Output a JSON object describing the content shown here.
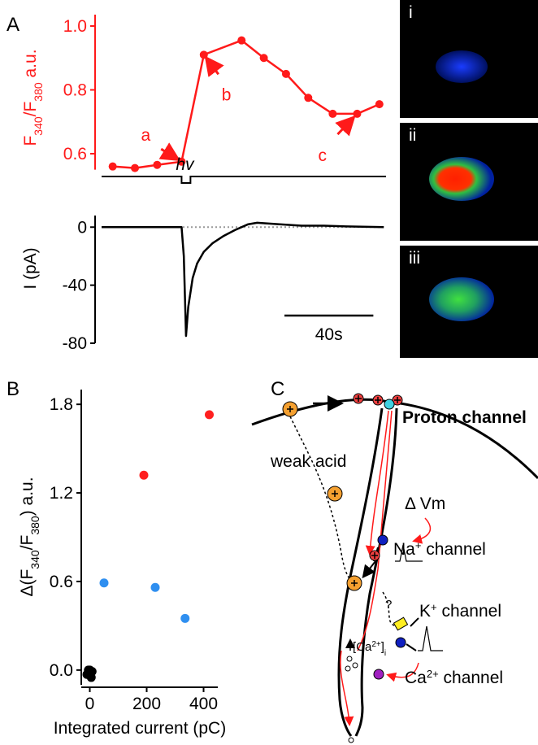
{
  "panel_labels": [
    "A",
    "B",
    "C"
  ],
  "chart_data": [
    {
      "type": "line",
      "ylabel_parts": [
        "F",
        "340",
        "/F",
        "380",
        " a.u."
      ],
      "x": [
        5,
        15,
        25,
        36,
        46,
        63,
        73,
        83,
        93,
        104,
        115,
        125
      ],
      "values": [
        0.56,
        0.555,
        0.565,
        0.575,
        0.91,
        0.955,
        0.9,
        0.85,
        0.775,
        0.725,
        0.725,
        0.755
      ],
      "xlim": [
        0,
        128
      ],
      "ylim": [
        0.55,
        1.0
      ],
      "yticks": [
        0.6,
        0.8,
        {
          "value": 1.0,
          "label": "1.0"
        }
      ],
      "color": "#ff1a1a",
      "annotations": [
        "a",
        "b",
        "c"
      ]
    },
    {
      "type": "line",
      "ylabel": "I (pA)",
      "x": [
        0,
        10,
        20,
        30,
        36,
        37,
        38,
        39,
        41,
        43,
        46,
        50,
        55,
        60,
        66,
        70,
        80,
        90,
        100,
        110,
        127
      ],
      "values": [
        0,
        0,
        0,
        0,
        0,
        -20,
        -75,
        -55,
        -35,
        -25,
        -17,
        -11,
        -6,
        -2,
        2,
        3,
        2,
        1,
        1,
        0.5,
        0
      ],
      "xlim": [
        0,
        128
      ],
      "ylim": [
        -80,
        8
      ],
      "yticks": [
        0,
        -40,
        -80
      ],
      "color": "#000000",
      "stimulus": {
        "label": "hv",
        "x": [
          36,
          40
        ]
      },
      "scale_bar": {
        "value": 40,
        "label": "40s"
      }
    },
    {
      "type": "scatter",
      "ylabel_parts": [
        "Δ(F",
        "340",
        "/F",
        "380",
        ") a.u."
      ],
      "xlabel": "Integrated current (pC)",
      "xlim": [
        -30,
        450
      ],
      "ylim": [
        -0.1,
        1.9
      ],
      "xticks": [
        0,
        200,
        400
      ],
      "yticks": [
        {
          "value": 0,
          "label": "0.0"
        },
        0.6,
        1.2,
        1.8
      ],
      "series": [
        {
          "color": "#ff2020",
          "x": [
            190,
            420
          ],
          "values": [
            1.32,
            1.73
          ]
        },
        {
          "color": "#2f8ff0",
          "x": [
            50,
            230,
            335
          ],
          "values": [
            0.59,
            0.56,
            0.35
          ]
        },
        {
          "color": "#000000",
          "x": [
            -10,
            0,
            5,
            -5,
            8,
            2
          ],
          "values": [
            -0.03,
            0.0,
            -0.05,
            0.0,
            -0.01,
            -0.02
          ]
        }
      ]
    }
  ],
  "images": [
    "i",
    "ii",
    "iii"
  ],
  "diagram": {
    "proton_channel": "Proton channel",
    "weak_acid": "weak acid",
    "delta_vm": "Δ Vm",
    "na_channel": [
      "Na",
      "+",
      " channel"
    ],
    "k_channel": [
      "K",
      "+",
      " channel"
    ],
    "ca_channel": [
      "Ca",
      "2+",
      " channel"
    ],
    "ca_internal": [
      "[Ca",
      "2+",
      "]",
      "i"
    ],
    "question": "?"
  }
}
